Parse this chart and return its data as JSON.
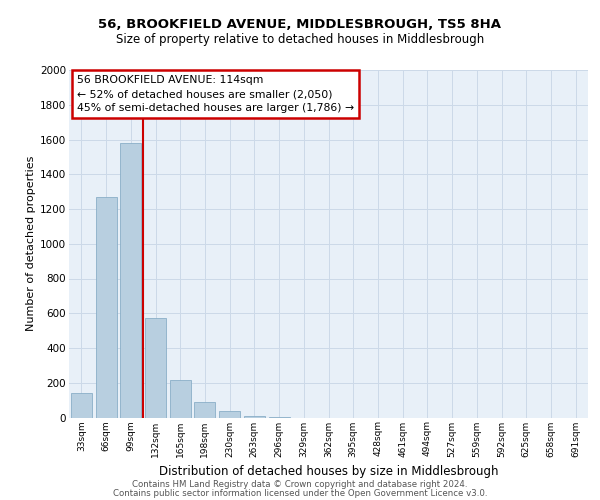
{
  "title1": "56, BROOKFIELD AVENUE, MIDDLESBROUGH, TS5 8HA",
  "title2": "Size of property relative to detached houses in Middlesbrough",
  "xlabel": "Distribution of detached houses by size in Middlesbrough",
  "ylabel": "Number of detached properties",
  "bar_labels": [
    "33sqm",
    "66sqm",
    "99sqm",
    "132sqm",
    "165sqm",
    "198sqm",
    "230sqm",
    "263sqm",
    "296sqm",
    "329sqm",
    "362sqm",
    "395sqm",
    "428sqm",
    "461sqm",
    "494sqm",
    "527sqm",
    "559sqm",
    "592sqm",
    "625sqm",
    "658sqm",
    "691sqm"
  ],
  "bar_values": [
    140,
    1270,
    1580,
    570,
    215,
    90,
    40,
    10,
    5,
    0,
    0,
    0,
    0,
    0,
    0,
    0,
    0,
    0,
    0,
    0,
    0
  ],
  "bar_color": "#b8cfe0",
  "bar_edge_color": "#8aafc8",
  "annotation_line_color": "#cc0000",
  "annotation_box_text": "56 BROOKFIELD AVENUE: 114sqm\n← 52% of detached houses are smaller (2,050)\n45% of semi-detached houses are larger (1,786) →",
  "annotation_box_color": "#cc0000",
  "ylim": [
    0,
    2000
  ],
  "yticks": [
    0,
    200,
    400,
    600,
    800,
    1000,
    1200,
    1400,
    1600,
    1800,
    2000
  ],
  "grid_color": "#ccd9e8",
  "background_color": "#e8f0f8",
  "footer1": "Contains HM Land Registry data © Crown copyright and database right 2024.",
  "footer2": "Contains public sector information licensed under the Open Government Licence v3.0."
}
